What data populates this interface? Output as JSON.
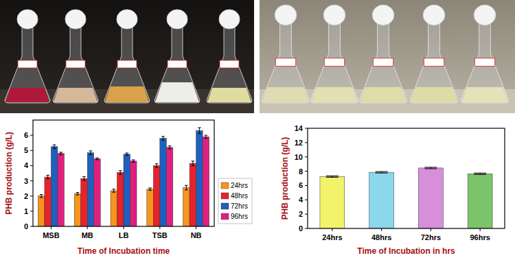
{
  "chart_data": [
    {
      "type": "bar",
      "y_label": "PHB production (g/L)",
      "x_label": "Time of Incubation time",
      "categories": [
        "MSB",
        "MB",
        "LB",
        "TSB",
        "NB"
      ],
      "series": [
        {
          "name": "24hrs",
          "color": "#f7941d",
          "values": [
            2.0,
            2.15,
            2.35,
            2.45,
            2.55
          ],
          "errors": [
            0.1,
            0.08,
            0.1,
            0.08,
            0.15
          ]
        },
        {
          "name": "48hrs",
          "color": "#e8222a",
          "values": [
            3.25,
            3.15,
            3.55,
            4.0,
            4.15
          ],
          "errors": [
            0.12,
            0.12,
            0.12,
            0.12,
            0.15
          ]
        },
        {
          "name": "72hrs",
          "color": "#1f5fbf",
          "values": [
            5.25,
            4.85,
            4.75,
            5.8,
            6.3
          ],
          "errors": [
            0.12,
            0.12,
            0.08,
            0.12,
            0.2
          ]
        },
        {
          "name": "96hrs",
          "color": "#e0207f",
          "values": [
            4.8,
            4.45,
            4.3,
            5.2,
            5.9
          ],
          "errors": [
            0.08,
            0.06,
            0.08,
            0.1,
            0.1
          ]
        }
      ],
      "ylim": [
        0,
        7
      ],
      "yticks": [
        0,
        1,
        2,
        3,
        4,
        5,
        6
      ],
      "legend": "right"
    },
    {
      "type": "bar",
      "y_label": "PHB production (g/L)",
      "x_label": "Time of Incubation in hrs",
      "categories": [
        "24hrs",
        "48hrs",
        "72hrs",
        "96hrs"
      ],
      "values": [
        7.25,
        7.85,
        8.45,
        7.65
      ],
      "errors": [
        0.1,
        0.1,
        0.1,
        0.1
      ],
      "colors": [
        "#f3f36a",
        "#8ad8ea",
        "#d68fd8",
        "#7cc46a"
      ],
      "ylim": [
        0,
        14
      ],
      "yticks": [
        0,
        2,
        4,
        6,
        8,
        10,
        12,
        14
      ]
    }
  ]
}
